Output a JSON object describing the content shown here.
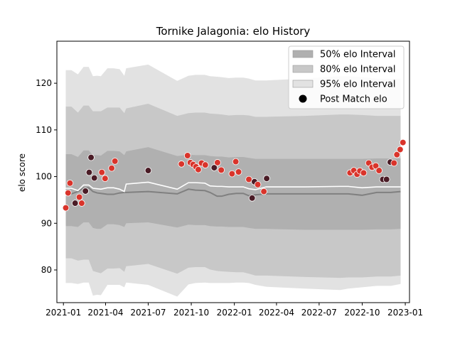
{
  "chart_data": {
    "type": "line",
    "title": "Tornike Jalagonia: elo History",
    "xlabel": "",
    "ylabel": "elo score",
    "ylim": [
      73,
      129
    ],
    "xlim": [
      "2020-12-18",
      "2023-01-10"
    ],
    "x_ticks": [
      {
        "date": "2021-01-01",
        "label": "2021-01"
      },
      {
        "date": "2021-04-01",
        "label": "2021-04"
      },
      {
        "date": "2021-07-01",
        "label": "2021-07"
      },
      {
        "date": "2021-10-01",
        "label": "2021-10"
      },
      {
        "date": "2022-01-01",
        "label": "2022-01"
      },
      {
        "date": "2022-04-01",
        "label": "2022-04"
      },
      {
        "date": "2022-07-01",
        "label": "2022-07"
      },
      {
        "date": "2022-10-01",
        "label": "2022-10"
      },
      {
        "date": "2023-01-01",
        "label": "2023-01"
      }
    ],
    "y_ticks": [
      80,
      90,
      100,
      110,
      120
    ],
    "grid": false,
    "legend_position": "top-right",
    "legend": [
      {
        "label": "50% elo Interval",
        "kind": "patch",
        "color": "#b0b0b0"
      },
      {
        "label": "80% elo Interval",
        "kind": "patch",
        "color": "#c8c8c8"
      },
      {
        "label": "95% elo Interval",
        "kind": "patch",
        "color": "#e2e2e2"
      },
      {
        "label": "Post Match elo",
        "kind": "marker",
        "color": "#000000"
      }
    ],
    "colors": {
      "band95": "#e2e2e2",
      "band80": "#c8c8c8",
      "band50": "#b0b0b0",
      "mean_line": "#ffffff",
      "median_line": "#808080",
      "point_win": "#d9342b",
      "point_loss": "#4a1c26",
      "point_edge": "#ffffff"
    },
    "bands": {
      "x": [
        "2021-01-06",
        "2021-01-18",
        "2021-02-01",
        "2021-02-13",
        "2021-02-24",
        "2021-03-05",
        "2021-03-14",
        "2021-03-22",
        "2021-04-05",
        "2021-04-18",
        "2021-05-01",
        "2021-05-11",
        "2021-05-15",
        "2021-07-01",
        "2021-09-01",
        "2021-09-25",
        "2021-10-10",
        "2021-10-30",
        "2021-11-10",
        "2021-11-25",
        "2021-12-05",
        "2021-12-20",
        "2022-01-05",
        "2022-01-20",
        "2022-02-01",
        "2022-02-15",
        "2022-03-10",
        "2022-06-01",
        "2022-08-15",
        "2022-09-01",
        "2022-10-01",
        "2022-11-01",
        "2022-12-01",
        "2022-12-22"
      ],
      "p95_upper": [
        122.8,
        122.8,
        121.9,
        123.5,
        123.5,
        121.5,
        121.6,
        121.5,
        123.2,
        123.2,
        123.0,
        121.6,
        123.2,
        124.0,
        120.5,
        121.6,
        121.8,
        121.8,
        121.5,
        121.4,
        121.3,
        121.1,
        121.2,
        121.2,
        121.0,
        120.6,
        120.6,
        121.0,
        121.5,
        121.5,
        121.3,
        121.0,
        121.0,
        121.0
      ],
      "p80_upper": [
        115.0,
        115.0,
        113.7,
        115.2,
        115.2,
        114.0,
        114.0,
        114.0,
        114.8,
        114.8,
        114.8,
        113.6,
        114.6,
        115.6,
        113.0,
        113.6,
        113.7,
        113.7,
        113.5,
        113.4,
        113.3,
        113.1,
        113.2,
        113.2,
        113.1,
        112.8,
        112.8,
        113.0,
        113.3,
        113.3,
        113.2,
        113.0,
        113.0,
        113.0
      ],
      "p50_upper": [
        104.8,
        104.8,
        104.2,
        105.6,
        105.6,
        104.6,
        104.6,
        104.5,
        105.5,
        105.5,
        105.4,
        104.6,
        105.4,
        106.3,
        104.4,
        104.7,
        104.6,
        104.6,
        104.4,
        104.3,
        104.3,
        104.1,
        104.2,
        104.2,
        104.0,
        103.8,
        103.8,
        103.8,
        103.8,
        103.8,
        103.8,
        103.9,
        103.9,
        103.9
      ],
      "mean": [
        97.5,
        97.5,
        97.0,
        98.2,
        98.2,
        97.5,
        97.4,
        97.3,
        97.6,
        97.6,
        97.3,
        96.8,
        98.4,
        98.8,
        97.3,
        98.7,
        98.7,
        98.6,
        98.0,
        97.9,
        97.9,
        97.8,
        97.8,
        97.8,
        97.4,
        97.2,
        97.8,
        97.8,
        97.9,
        97.9,
        97.6,
        97.8,
        97.8,
        97.8
      ],
      "median": [
        96.3,
        96.3,
        96.8,
        97.6,
        97.6,
        96.8,
        96.5,
        96.4,
        96.2,
        96.2,
        96.5,
        96.6,
        96.6,
        96.8,
        96.3,
        97.3,
        97.1,
        97.0,
        96.6,
        95.8,
        95.8,
        96.2,
        96.4,
        96.4,
        95.9,
        96.1,
        96.3,
        96.3,
        96.3,
        96.3,
        96.0,
        96.6,
        96.6,
        96.8
      ],
      "p50_lower": [
        89.4,
        89.4,
        89.2,
        90.2,
        90.2,
        89.0,
        88.8,
        88.8,
        89.8,
        89.8,
        89.6,
        89.2,
        90.0,
        90.2,
        89.1,
        89.7,
        89.6,
        89.6,
        89.4,
        89.3,
        89.3,
        89.2,
        89.2,
        89.2,
        89.0,
        88.8,
        88.8,
        88.6,
        88.6,
        88.6,
        88.6,
        88.7,
        88.7,
        88.8
      ],
      "p80_lower": [
        82.5,
        82.5,
        82.0,
        82.2,
        82.2,
        79.8,
        79.5,
        79.3,
        80.3,
        80.3,
        80.4,
        79.6,
        80.8,
        81.3,
        79.2,
        80.5,
        80.6,
        80.6,
        80.1,
        79.8,
        79.7,
        79.6,
        79.5,
        79.5,
        79.2,
        78.8,
        78.8,
        78.5,
        78.3,
        78.4,
        78.4,
        78.6,
        78.6,
        78.8
      ],
      "p95_lower": [
        77.2,
        77.2,
        77.0,
        77.3,
        77.3,
        74.5,
        74.7,
        74.6,
        76.8,
        76.8,
        76.8,
        76.3,
        77.3,
        76.8,
        74.3,
        76.9,
        77.2,
        77.3,
        77.2,
        77.2,
        77.2,
        77.2,
        77.3,
        77.3,
        77.2,
        76.8,
        76.4,
        76.0,
        75.7,
        76.0,
        76.3,
        76.6,
        76.6,
        77.0
      ]
    },
    "points": [
      {
        "date": "2021-01-06",
        "elo": 93.3,
        "result": "win"
      },
      {
        "date": "2021-01-11",
        "elo": 96.5,
        "result": "win"
      },
      {
        "date": "2021-01-15",
        "elo": 98.6,
        "result": "win"
      },
      {
        "date": "2021-01-26",
        "elo": 94.3,
        "result": "loss"
      },
      {
        "date": "2021-02-04",
        "elo": 95.6,
        "result": "win"
      },
      {
        "date": "2021-02-09",
        "elo": 94.3,
        "result": "win"
      },
      {
        "date": "2021-02-17",
        "elo": 96.9,
        "result": "loss"
      },
      {
        "date": "2021-02-25",
        "elo": 100.9,
        "result": "loss"
      },
      {
        "date": "2021-03-01",
        "elo": 104.1,
        "result": "loss"
      },
      {
        "date": "2021-03-08",
        "elo": 99.7,
        "result": "loss"
      },
      {
        "date": "2021-03-24",
        "elo": 100.9,
        "result": "win"
      },
      {
        "date": "2021-03-31",
        "elo": 99.6,
        "result": "win"
      },
      {
        "date": "2021-04-14",
        "elo": 101.8,
        "result": "win"
      },
      {
        "date": "2021-04-21",
        "elo": 103.3,
        "result": "win"
      },
      {
        "date": "2021-07-01",
        "elo": 101.3,
        "result": "loss"
      },
      {
        "date": "2021-09-10",
        "elo": 102.7,
        "result": "win"
      },
      {
        "date": "2021-09-23",
        "elo": 104.5,
        "result": "win"
      },
      {
        "date": "2021-09-29",
        "elo": 103.0,
        "result": "win"
      },
      {
        "date": "2021-10-05",
        "elo": 102.6,
        "result": "win"
      },
      {
        "date": "2021-10-11",
        "elo": 102.1,
        "result": "win"
      },
      {
        "date": "2021-10-16",
        "elo": 101.5,
        "result": "win"
      },
      {
        "date": "2021-10-23",
        "elo": 102.9,
        "result": "win"
      },
      {
        "date": "2021-10-31",
        "elo": 102.5,
        "result": "win"
      },
      {
        "date": "2021-11-19",
        "elo": 101.9,
        "result": "loss"
      },
      {
        "date": "2021-11-26",
        "elo": 103.0,
        "result": "win"
      },
      {
        "date": "2021-12-04",
        "elo": 101.4,
        "result": "win"
      },
      {
        "date": "2021-12-27",
        "elo": 100.6,
        "result": "win"
      },
      {
        "date": "2022-01-04",
        "elo": 103.2,
        "result": "win"
      },
      {
        "date": "2022-01-10",
        "elo": 101.0,
        "result": "win"
      },
      {
        "date": "2022-02-01",
        "elo": 99.4,
        "result": "win"
      },
      {
        "date": "2022-02-08",
        "elo": 95.4,
        "result": "loss"
      },
      {
        "date": "2022-02-13",
        "elo": 98.9,
        "result": "loss"
      },
      {
        "date": "2022-02-20",
        "elo": 98.3,
        "result": "win"
      },
      {
        "date": "2022-03-05",
        "elo": 96.8,
        "result": "win"
      },
      {
        "date": "2022-03-11",
        "elo": 99.6,
        "result": "loss"
      },
      {
        "date": "2022-09-05",
        "elo": 100.8,
        "result": "win"
      },
      {
        "date": "2022-09-13",
        "elo": 101.3,
        "result": "win"
      },
      {
        "date": "2022-09-20",
        "elo": 100.5,
        "result": "win"
      },
      {
        "date": "2022-09-26",
        "elo": 101.2,
        "result": "win"
      },
      {
        "date": "2022-10-04",
        "elo": 100.8,
        "result": "win"
      },
      {
        "date": "2022-10-15",
        "elo": 102.9,
        "result": "win"
      },
      {
        "date": "2022-10-22",
        "elo": 102.0,
        "result": "win"
      },
      {
        "date": "2022-10-30",
        "elo": 102.3,
        "result": "win"
      },
      {
        "date": "2022-11-06",
        "elo": 101.3,
        "result": "win"
      },
      {
        "date": "2022-11-14",
        "elo": 99.4,
        "result": "loss"
      },
      {
        "date": "2022-11-22",
        "elo": 99.4,
        "result": "loss"
      },
      {
        "date": "2022-11-30",
        "elo": 103.1,
        "result": "loss"
      },
      {
        "date": "2022-12-08",
        "elo": 102.9,
        "result": "win"
      },
      {
        "date": "2022-12-14",
        "elo": 104.7,
        "result": "win"
      },
      {
        "date": "2022-12-21",
        "elo": 105.8,
        "result": "win"
      },
      {
        "date": "2022-12-27",
        "elo": 107.3,
        "result": "win"
      }
    ]
  }
}
